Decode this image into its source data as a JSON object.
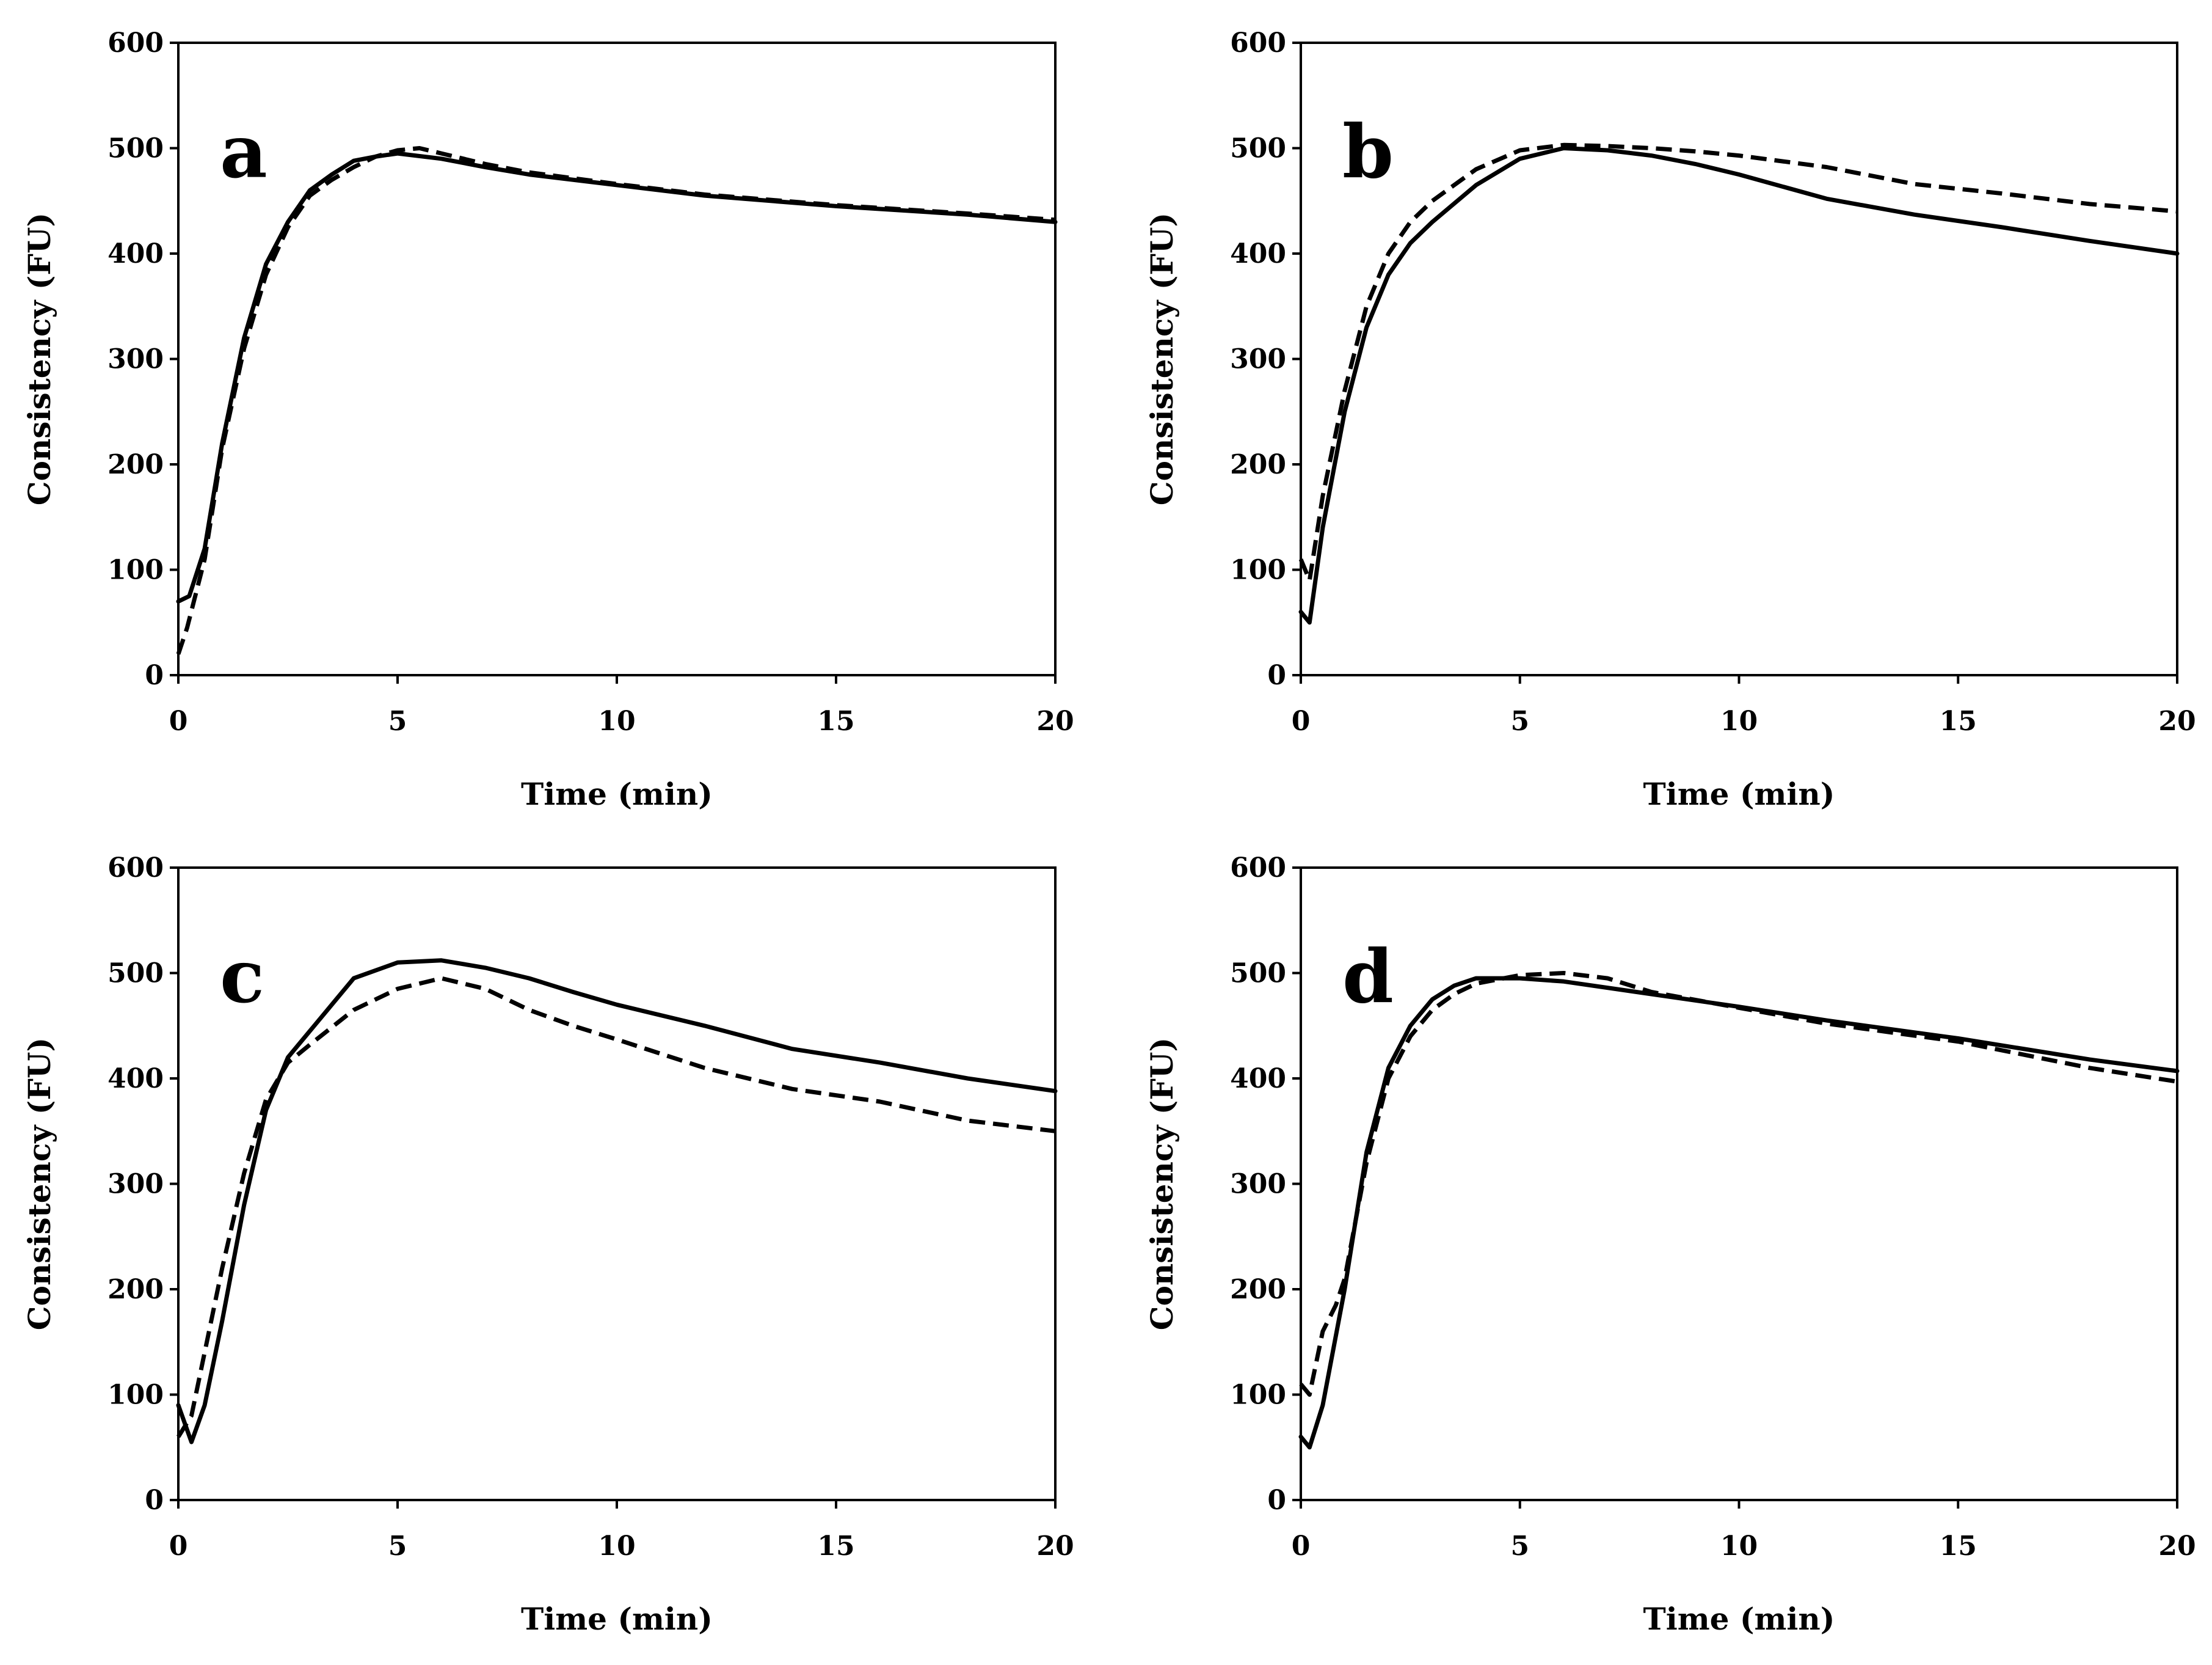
{
  "chart_data": [
    {
      "type": "line",
      "panel_label": "a",
      "xlabel": "Time (min)",
      "ylabel": "Consistency (FU)",
      "xlim": [
        0,
        20
      ],
      "ylim": [
        0,
        600
      ],
      "xticks": [
        "0",
        "5",
        "10",
        "15",
        "20"
      ],
      "yticks": [
        "0",
        "100",
        "200",
        "300",
        "400",
        "500",
        "600"
      ],
      "grid": false,
      "series": [
        {
          "name": "solid",
          "style": "solid",
          "x": [
            0,
            0.25,
            0.6,
            1,
            1.5,
            2,
            2.5,
            3,
            3.5,
            4,
            4.5,
            5,
            6,
            7,
            8,
            10,
            12,
            15,
            18,
            20
          ],
          "y": [
            70,
            75,
            120,
            220,
            320,
            390,
            430,
            460,
            475,
            488,
            492,
            495,
            490,
            482,
            475,
            465,
            455,
            445,
            437,
            430
          ]
        },
        {
          "name": "dashed",
          "style": "dashed",
          "x": [
            0,
            0.2,
            0.6,
            1,
            1.5,
            2,
            2.5,
            3,
            3.5,
            4,
            4.5,
            5,
            5.5,
            6,
            7,
            8,
            10,
            12,
            15,
            18,
            20
          ],
          "y": [
            20,
            45,
            110,
            215,
            310,
            380,
            425,
            455,
            470,
            482,
            492,
            498,
            500,
            495,
            485,
            477,
            466,
            456,
            446,
            438,
            432
          ]
        }
      ]
    },
    {
      "type": "line",
      "panel_label": "b",
      "xlabel": "Time (min)",
      "ylabel": "Consistency (FU)",
      "xlim": [
        0,
        20
      ],
      "ylim": [
        0,
        600
      ],
      "xticks": [
        "0",
        "5",
        "10",
        "15",
        "20"
      ],
      "yticks": [
        "0",
        "100",
        "200",
        "300",
        "400",
        "500",
        "600"
      ],
      "grid": false,
      "series": [
        {
          "name": "solid",
          "style": "solid",
          "x": [
            0,
            0.2,
            0.5,
            1,
            1.5,
            2,
            2.5,
            3,
            4,
            5,
            6,
            7,
            8,
            9,
            10,
            12,
            14,
            16,
            18,
            20
          ],
          "y": [
            60,
            50,
            140,
            250,
            330,
            380,
            410,
            430,
            465,
            490,
            500,
            498,
            493,
            485,
            475,
            452,
            437,
            425,
            412,
            400
          ]
        },
        {
          "name": "dashed",
          "style": "dashed",
          "x": [
            0,
            0.2,
            0.5,
            1,
            1.5,
            2,
            2.5,
            3,
            4,
            5,
            6,
            7,
            8,
            9,
            10,
            12,
            14,
            16,
            18,
            20
          ],
          "y": [
            110,
            90,
            170,
            270,
            350,
            400,
            430,
            450,
            480,
            498,
            503,
            502,
            500,
            497,
            493,
            482,
            466,
            457,
            447,
            440
          ]
        }
      ]
    },
    {
      "type": "line",
      "panel_label": "c",
      "xlabel": "Time (min)",
      "ylabel": "Consistency (FU)",
      "xlim": [
        0,
        20
      ],
      "ylim": [
        0,
        600
      ],
      "xticks": [
        "0",
        "5",
        "10",
        "15",
        "20"
      ],
      "yticks": [
        "0",
        "100",
        "200",
        "300",
        "400",
        "500",
        "600"
      ],
      "grid": false,
      "series": [
        {
          "name": "solid",
          "style": "solid",
          "x": [
            0,
            0.3,
            0.6,
            1,
            1.5,
            2,
            2.5,
            3,
            3.5,
            4,
            5,
            6,
            7,
            8,
            9,
            10,
            12,
            14,
            16,
            18,
            20
          ],
          "y": [
            90,
            55,
            90,
            170,
            280,
            370,
            420,
            445,
            470,
            495,
            510,
            512,
            505,
            495,
            482,
            470,
            450,
            428,
            415,
            400,
            388
          ]
        },
        {
          "name": "dashed",
          "style": "dashed",
          "x": [
            0,
            0.3,
            0.6,
            1,
            1.5,
            2,
            2.5,
            3,
            4,
            5,
            6,
            7,
            8,
            9,
            10,
            12,
            14,
            16,
            18,
            20
          ],
          "y": [
            60,
            80,
            140,
            220,
            310,
            380,
            415,
            432,
            465,
            485,
            495,
            485,
            465,
            450,
            437,
            410,
            390,
            378,
            360,
            350
          ]
        }
      ]
    },
    {
      "type": "line",
      "panel_label": "d",
      "xlabel": "Time (min)",
      "ylabel": "Consistency (FU)",
      "xlim": [
        0,
        20
      ],
      "ylim": [
        0,
        600
      ],
      "xticks": [
        "0",
        "5",
        "10",
        "15",
        "20"
      ],
      "yticks": [
        "0",
        "100",
        "200",
        "300",
        "400",
        "500",
        "600"
      ],
      "grid": false,
      "series": [
        {
          "name": "solid",
          "style": "solid",
          "x": [
            0,
            0.2,
            0.5,
            1,
            1.5,
            2,
            2.5,
            3,
            3.5,
            4,
            5,
            6,
            8,
            10,
            12,
            15,
            18,
            20
          ],
          "y": [
            60,
            50,
            90,
            200,
            330,
            410,
            450,
            475,
            488,
            495,
            495,
            492,
            480,
            468,
            455,
            438,
            418,
            407
          ]
        },
        {
          "name": "dashed",
          "style": "dashed",
          "x": [
            0,
            0.2,
            0.5,
            0.8,
            1,
            1.5,
            2,
            2.5,
            3,
            3.5,
            4,
            5,
            6,
            7,
            8,
            10,
            12,
            15,
            18,
            20
          ],
          "y": [
            110,
            100,
            160,
            185,
            210,
            320,
            400,
            440,
            465,
            480,
            490,
            498,
            500,
            495,
            482,
            467,
            452,
            435,
            410,
            397
          ]
        }
      ]
    }
  ]
}
